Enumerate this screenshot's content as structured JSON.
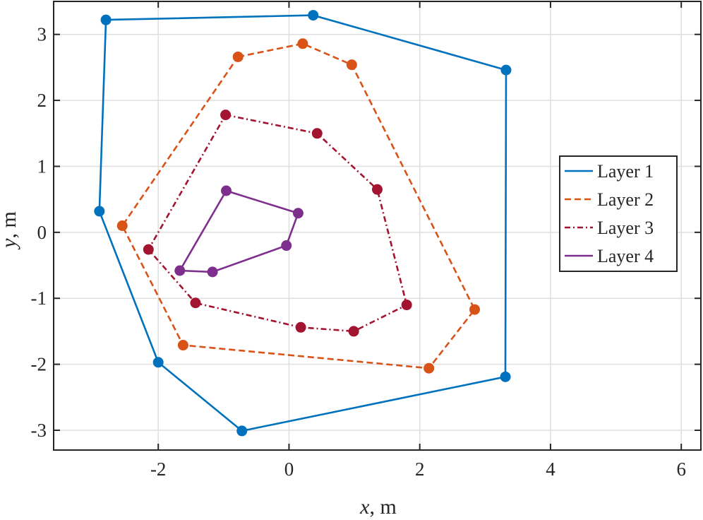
{
  "chart_data": {
    "type": "line",
    "title": "",
    "xlabel": {
      "var": "x",
      "unit": ", m"
    },
    "ylabel": {
      "var": "y",
      "unit": ", m"
    },
    "xlim": [
      -3.6,
      6.3
    ],
    "ylim": [
      -3.3,
      3.5
    ],
    "xticks": [
      -2,
      0,
      2,
      4,
      6
    ],
    "yticks": [
      -3,
      -2,
      -1,
      0,
      1,
      2,
      3
    ],
    "xtick_labels": [
      "-2",
      "0",
      "2",
      "4",
      "6"
    ],
    "ytick_labels": [
      "-3",
      "-2",
      "-1",
      "0",
      "1",
      "2",
      "3"
    ],
    "grid": true,
    "legend_position": "center-right",
    "series": [
      {
        "name": "Layer 1",
        "color": "#0072BD",
        "linestyle": "solid",
        "closed": true,
        "points": [
          [
            -2.8,
            3.22
          ],
          [
            0.37,
            3.29
          ],
          [
            3.32,
            2.46
          ],
          [
            3.31,
            -2.19
          ],
          [
            -0.72,
            -3.01
          ],
          [
            -2.0,
            -1.97
          ],
          [
            -2.9,
            0.32
          ]
        ]
      },
      {
        "name": "Layer 2",
        "color": "#D95319",
        "linestyle": "dashed",
        "closed": true,
        "points": [
          [
            -0.78,
            2.66
          ],
          [
            0.21,
            2.86
          ],
          [
            0.96,
            2.54
          ],
          [
            2.84,
            -1.17
          ],
          [
            2.14,
            -2.06
          ],
          [
            -1.62,
            -1.71
          ],
          [
            -2.55,
            0.1
          ]
        ]
      },
      {
        "name": "Layer 3",
        "color": "#A2142F",
        "linestyle": "dashdot",
        "closed": true,
        "points": [
          [
            -0.97,
            1.78
          ],
          [
            0.43,
            1.5
          ],
          [
            1.35,
            0.65
          ],
          [
            1.8,
            -1.1
          ],
          [
            0.99,
            -1.5
          ],
          [
            0.18,
            -1.44
          ],
          [
            -1.43,
            -1.07
          ],
          [
            -2.15,
            -0.26
          ]
        ]
      },
      {
        "name": "Layer 4",
        "color": "#7E2F8E",
        "linestyle": "solid",
        "closed": true,
        "points": [
          [
            -0.96,
            0.63
          ],
          [
            0.14,
            0.29
          ],
          [
            -0.04,
            -0.2
          ],
          [
            -1.17,
            -0.6
          ],
          [
            -1.67,
            -0.58
          ]
        ]
      }
    ]
  }
}
